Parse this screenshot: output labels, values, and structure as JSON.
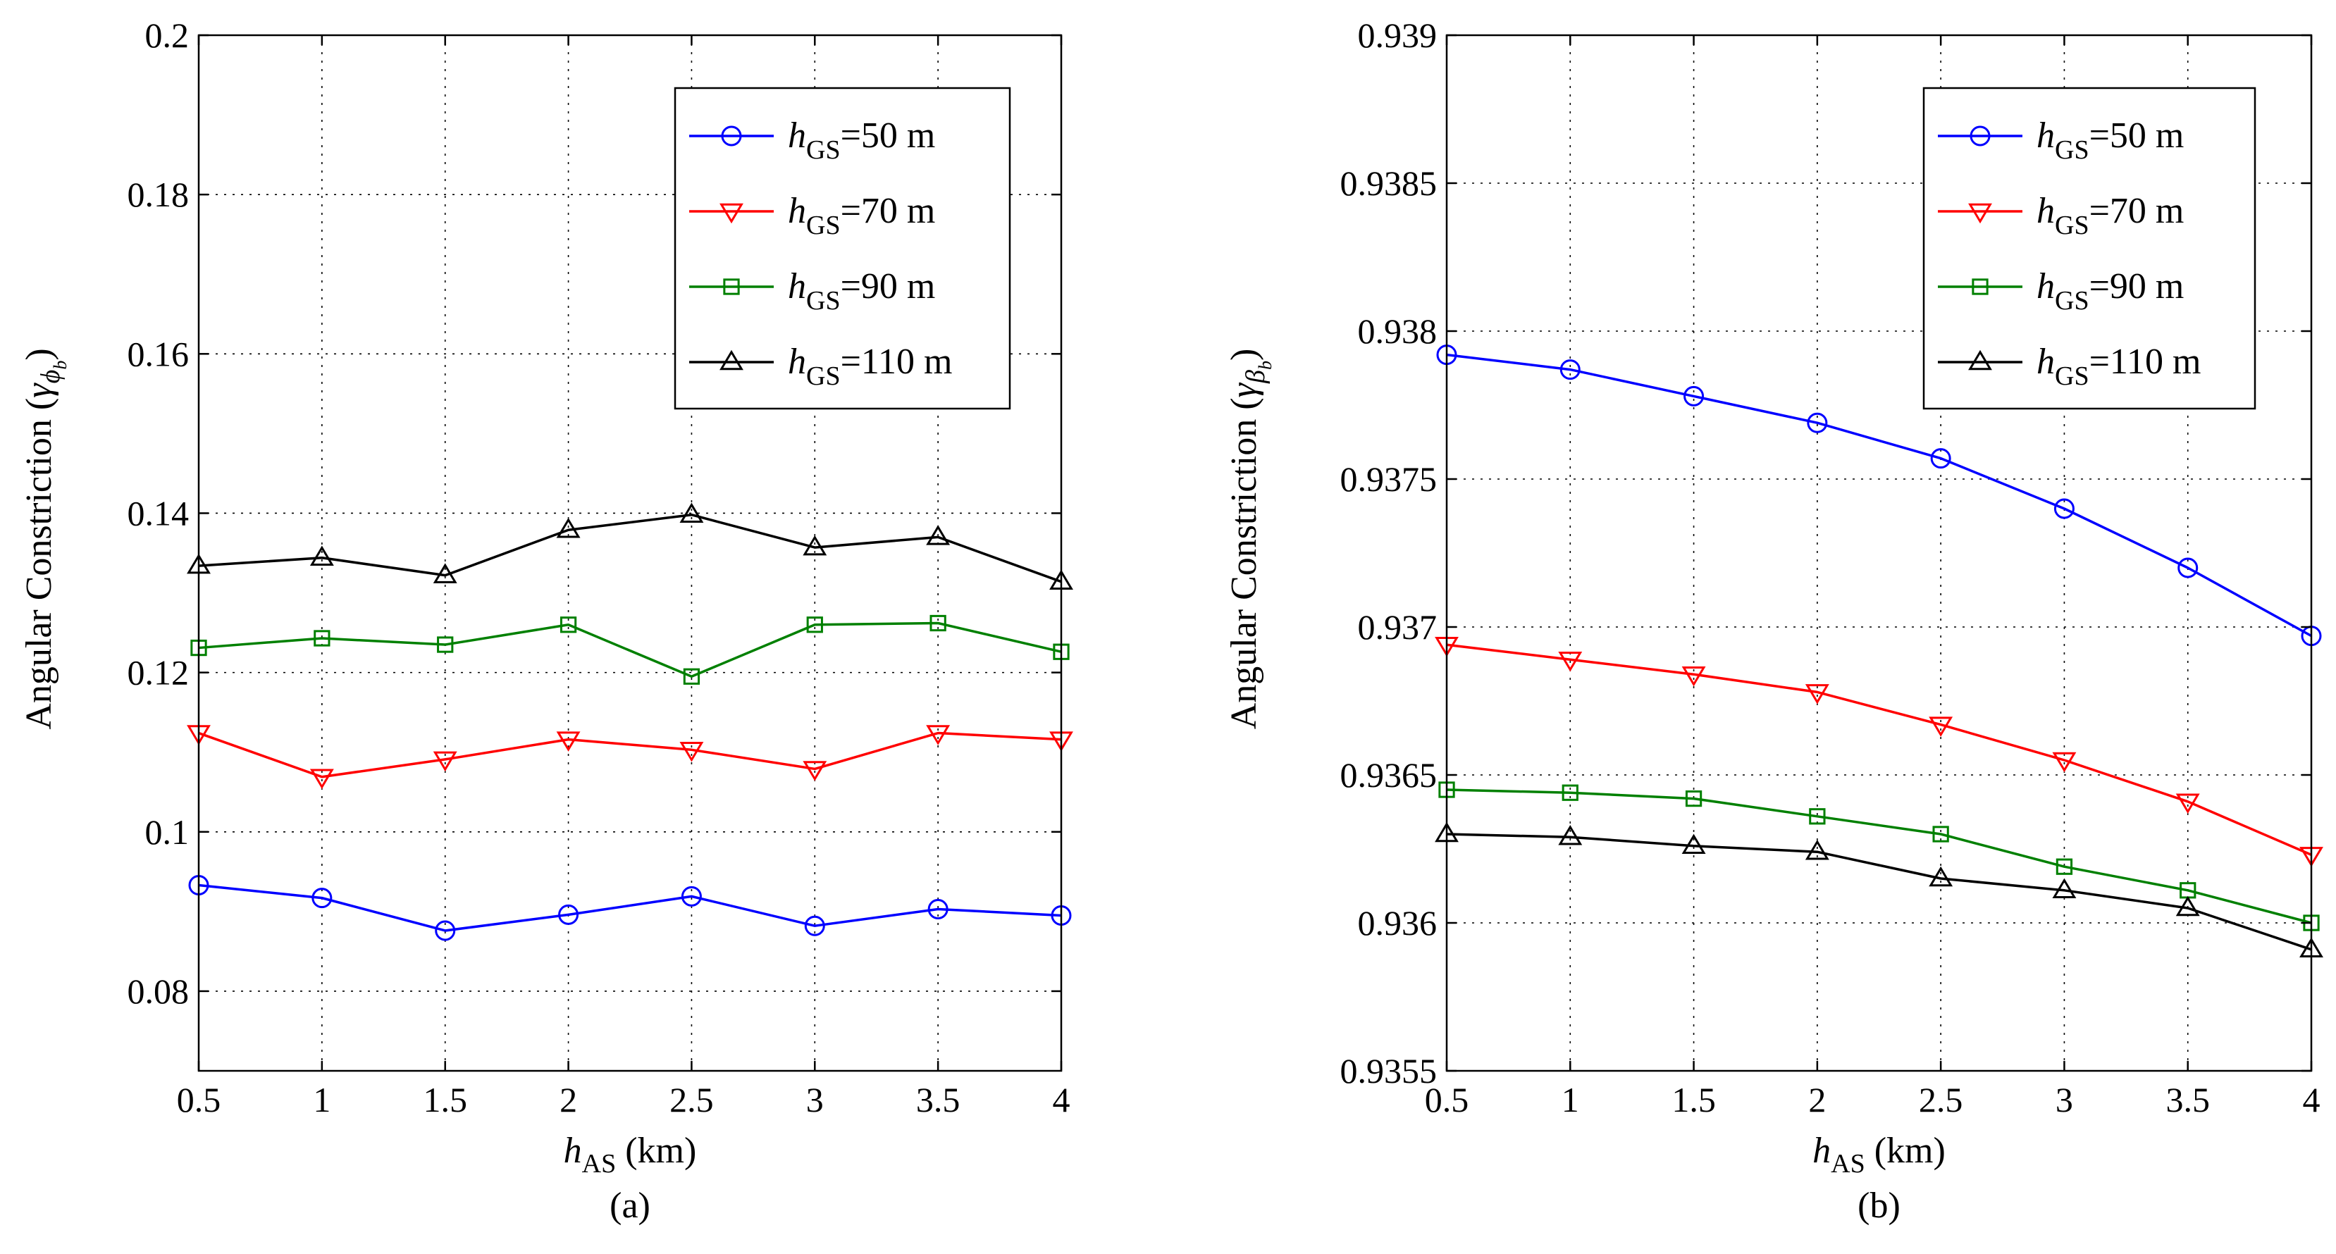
{
  "chart_data": [
    {
      "type": "line",
      "panel_label": "(a)",
      "xlabel": {
        "main": "h",
        "sub": "AS",
        "rest": " (km)"
      },
      "ylabel": {
        "text": "Angular Constriction (",
        "symbol": "γ",
        "sub": "ϕ",
        "subsub": "b",
        "close": ")"
      },
      "x": [
        0.5,
        1,
        1.5,
        2,
        2.5,
        3,
        3.5,
        4
      ],
      "xlim": [
        0.5,
        4
      ],
      "ylim": [
        0.07,
        0.2
      ],
      "xticks": [
        0.5,
        1,
        1.5,
        2,
        2.5,
        3,
        3.5,
        4
      ],
      "xtick_labels": [
        "0.5",
        "1",
        "1.5",
        "2",
        "2.5",
        "3",
        "3.5",
        "4"
      ],
      "yticks": [
        0.08,
        0.1,
        0.12,
        0.14,
        0.16,
        0.18,
        0.2
      ],
      "ytick_labels": [
        "0.08",
        "0.1",
        "0.12",
        "0.14",
        "0.16",
        "0.18",
        "0.2"
      ],
      "grid": true,
      "legend_position": "top-right",
      "series": [
        {
          "name": "h_GS=50 m",
          "legend": {
            "main": "h",
            "sub": "GS",
            "rest": "=50 m"
          },
          "color": "#0000ff",
          "marker": "circle",
          "values": [
            0.0933,
            0.0917,
            0.0876,
            0.0896,
            0.0919,
            0.0882,
            0.0903,
            0.0895
          ]
        },
        {
          "name": "h_GS=70 m",
          "legend": {
            "main": "h",
            "sub": "GS",
            "rest": "=70 m"
          },
          "color": "#ff0000",
          "marker": "triangle-down",
          "values": [
            0.1124,
            0.1069,
            0.1091,
            0.1116,
            0.1103,
            0.1079,
            0.1124,
            0.1116
          ]
        },
        {
          "name": "h_GS=90 m",
          "legend": {
            "main": "h",
            "sub": "GS",
            "rest": "=90 m"
          },
          "color": "#008000",
          "marker": "square",
          "values": [
            0.1231,
            0.1243,
            0.1235,
            0.126,
            0.1195,
            0.126,
            0.1262,
            0.1226
          ]
        },
        {
          "name": "h_GS=110 m",
          "legend": {
            "main": "h",
            "sub": "GS",
            "rest": "=110 m"
          },
          "color": "#000000",
          "marker": "triangle-up",
          "values": [
            0.1334,
            0.1344,
            0.1322,
            0.1379,
            0.1398,
            0.1357,
            0.137,
            0.1314
          ]
        }
      ]
    },
    {
      "type": "line",
      "panel_label": "(b)",
      "xlabel": {
        "main": "h",
        "sub": "AS",
        "rest": " (km)"
      },
      "ylabel": {
        "text": "Angular Constriction (",
        "symbol": "γ",
        "sub": "β",
        "subsub": "b",
        "close": ")"
      },
      "x": [
        0.5,
        1,
        1.5,
        2,
        2.5,
        3,
        3.5,
        4
      ],
      "xlim": [
        0.5,
        4
      ],
      "ylim": [
        0.9355,
        0.939
      ],
      "xticks": [
        0.5,
        1,
        1.5,
        2,
        2.5,
        3,
        3.5,
        4
      ],
      "xtick_labels": [
        "0.5",
        "1",
        "1.5",
        "2",
        "2.5",
        "3",
        "3.5",
        "4"
      ],
      "yticks": [
        0.9355,
        0.936,
        0.9365,
        0.937,
        0.9375,
        0.938,
        0.9385,
        0.939
      ],
      "ytick_labels": [
        "0.9355",
        "0.936",
        "0.9365",
        "0.937",
        "0.9375",
        "0.938",
        "0.9385",
        "0.939"
      ],
      "grid": true,
      "legend_position": "top-right",
      "series": [
        {
          "name": "h_GS=50 m",
          "legend": {
            "main": "h",
            "sub": "GS",
            "rest": "=50 m"
          },
          "color": "#0000ff",
          "marker": "circle",
          "values": [
            0.93792,
            0.93787,
            0.93778,
            0.93769,
            0.93757,
            0.9374,
            0.9372,
            0.93697
          ]
        },
        {
          "name": "h_GS=70 m",
          "legend": {
            "main": "h",
            "sub": "GS",
            "rest": "=70 m"
          },
          "color": "#ff0000",
          "marker": "triangle-down",
          "values": [
            0.93694,
            0.93689,
            0.93684,
            0.93678,
            0.93667,
            0.93655,
            0.93641,
            0.93623
          ]
        },
        {
          "name": "h_GS=90 m",
          "legend": {
            "main": "h",
            "sub": "GS",
            "rest": "=90 m"
          },
          "color": "#008000",
          "marker": "square",
          "values": [
            0.93645,
            0.93644,
            0.93642,
            0.93636,
            0.9363,
            0.93619,
            0.93611,
            0.936
          ]
        },
        {
          "name": "h_GS=110 m",
          "legend": {
            "main": "h",
            "sub": "GS",
            "rest": "=110 m"
          },
          "color": "#000000",
          "marker": "triangle-up",
          "values": [
            0.9363,
            0.93629,
            0.93626,
            0.93624,
            0.93615,
            0.93611,
            0.93605,
            0.93591
          ]
        }
      ]
    }
  ]
}
